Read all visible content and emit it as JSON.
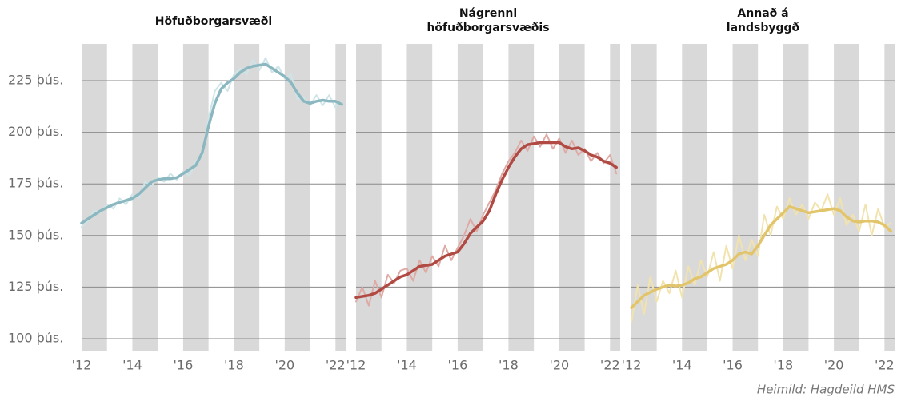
{
  "chart_data": [
    {
      "type": "line",
      "title": [
        "Höfuðborgarsvæði"
      ],
      "x": [
        2012,
        2012.25,
        2012.5,
        2012.75,
        2013,
        2013.25,
        2013.5,
        2013.75,
        2014,
        2014.25,
        2014.5,
        2014.75,
        2015,
        2015.25,
        2015.5,
        2015.75,
        2016,
        2016.25,
        2016.5,
        2016.75,
        2017,
        2017.25,
        2017.5,
        2017.75,
        2018,
        2018.25,
        2018.5,
        2018.75,
        2019,
        2019.25,
        2019.5,
        2019.75,
        2020,
        2020.25,
        2020.5,
        2020.75,
        2021,
        2021.25,
        2021.5,
        2021.75,
        2022,
        2022.25
      ],
      "series": [
        {
          "color": "#cfe4e6",
          "values": [
            154,
            157,
            162,
            161,
            165,
            163,
            168,
            165,
            170,
            168,
            176,
            174,
            178,
            176,
            180,
            177,
            181,
            179,
            186,
            188,
            207,
            220,
            224,
            220,
            228,
            231,
            228,
            235,
            230,
            236,
            229,
            232,
            226,
            228,
            216,
            217,
            213,
            218,
            213,
            218,
            212,
            215
          ]
        },
        {
          "color": "#8bb8c0",
          "values": [
            156,
            158,
            160,
            162,
            163.5,
            165,
            166,
            167,
            168,
            170,
            173,
            176,
            177,
            177.5,
            177.5,
            178,
            180,
            182,
            184,
            190,
            203,
            214,
            221,
            224,
            226,
            229,
            231,
            232,
            232.5,
            233,
            231,
            229,
            227,
            224,
            219,
            215,
            214,
            215,
            215.5,
            215,
            215,
            213.5
          ]
        }
      ],
      "xlim": [
        2012,
        2022.4
      ],
      "xticks": [
        {
          "value": 2012,
          "label": "'12"
        },
        {
          "value": 2014,
          "label": "'14"
        },
        {
          "value": 2016,
          "label": "'16"
        },
        {
          "value": 2018,
          "label": "'18"
        },
        {
          "value": 2020,
          "label": "'20"
        },
        {
          "value": 2022,
          "label": "'22"
        }
      ],
      "ylim": [
        93.8,
        242.8
      ],
      "yticks": [
        {
          "value": 100,
          "label": "100 þús."
        },
        {
          "value": 125,
          "label": "125 þús."
        },
        {
          "value": 150,
          "label": "150 þús."
        },
        {
          "value": 175,
          "label": "175 þús."
        },
        {
          "value": 200,
          "label": "200 þús."
        },
        {
          "value": 225,
          "label": "225 þús."
        }
      ],
      "grid": true
    },
    {
      "type": "line",
      "title": [
        "Nágrenni",
        "höfuðborgarsvæðis"
      ],
      "x": [
        2012,
        2012.25,
        2012.5,
        2012.75,
        2013,
        2013.25,
        2013.5,
        2013.75,
        2014,
        2014.25,
        2014.5,
        2014.75,
        2015,
        2015.25,
        2015.5,
        2015.75,
        2016,
        2016.25,
        2016.5,
        2016.75,
        2017,
        2017.25,
        2017.5,
        2017.75,
        2018,
        2018.25,
        2018.5,
        2018.75,
        2019,
        2019.25,
        2019.5,
        2019.75,
        2020,
        2020.25,
        2020.5,
        2020.75,
        2021,
        2021.25,
        2021.5,
        2021.75,
        2022,
        2022.25
      ],
      "series": [
        {
          "color": "#deaaa5",
          "values": [
            118,
            125,
            116,
            128,
            120,
            131,
            127,
            133,
            134,
            128,
            138,
            132,
            140,
            135,
            145,
            138,
            144,
            150,
            158,
            152,
            160,
            166,
            172,
            180,
            186,
            190,
            196,
            191,
            198,
            193,
            199,
            192,
            197,
            190,
            196,
            189,
            192,
            186,
            190,
            185,
            189,
            180
          ]
        },
        {
          "color": "#b04a43",
          "values": [
            120,
            120.5,
            121,
            122,
            124,
            126,
            128,
            130,
            131,
            133,
            135,
            135.5,
            136,
            138,
            140,
            141,
            142,
            146,
            151,
            154,
            157,
            162,
            170,
            177,
            183,
            188,
            192,
            194,
            194.5,
            195,
            195,
            195,
            195,
            193,
            192,
            192.5,
            191,
            189,
            188,
            186,
            185,
            183
          ]
        }
      ],
      "xlim": [
        2012,
        2022.4
      ],
      "xticks": [
        {
          "value": 2012,
          "label": "'12"
        },
        {
          "value": 2014,
          "label": "'14"
        },
        {
          "value": 2016,
          "label": "'16"
        },
        {
          "value": 2018,
          "label": "'18"
        },
        {
          "value": 2020,
          "label": "'20"
        },
        {
          "value": 2022,
          "label": "'22"
        }
      ],
      "ylim": [
        93.8,
        242.8
      ],
      "yticks": [
        100,
        125,
        150,
        175,
        200,
        225
      ],
      "grid": true
    },
    {
      "type": "line",
      "title": [
        "Annað á",
        "landsbyggð"
      ],
      "x": [
        2012,
        2012.25,
        2012.5,
        2012.75,
        2013,
        2013.25,
        2013.5,
        2013.75,
        2014,
        2014.25,
        2014.5,
        2014.75,
        2015,
        2015.25,
        2015.5,
        2015.75,
        2016,
        2016.25,
        2016.5,
        2016.75,
        2017,
        2017.25,
        2017.5,
        2017.75,
        2018,
        2018.25,
        2018.5,
        2018.75,
        2019,
        2019.25,
        2019.5,
        2019.75,
        2020,
        2020.25,
        2020.5,
        2020.75,
        2021,
        2021.25,
        2021.5,
        2021.75,
        2022,
        2022.25
      ],
      "series": [
        {
          "color": "#f2e3ae",
          "values": [
            108,
            126,
            112,
            130,
            118,
            128,
            122,
            133,
            120,
            135,
            126,
            138,
            130,
            142,
            128,
            145,
            134,
            150,
            138,
            148,
            140,
            160,
            150,
            164,
            158,
            168,
            160,
            165,
            158,
            166,
            162,
            170,
            160,
            168,
            155,
            160,
            152,
            165,
            150,
            163,
            154,
            156
          ]
        },
        {
          "color": "#e2c56b",
          "values": [
            115,
            118,
            121,
            122.5,
            124,
            125,
            126,
            125.5,
            126,
            127,
            129,
            130,
            132,
            134,
            135,
            136,
            138,
            141,
            142,
            141,
            145,
            150,
            155,
            158,
            161,
            164,
            163,
            162,
            161,
            161.5,
            162,
            162.5,
            163,
            162,
            159,
            157,
            156.5,
            157,
            157,
            156.5,
            155,
            152
          ]
        }
      ],
      "xlim": [
        2012,
        2022.4
      ],
      "xticks": [
        {
          "value": 2012,
          "label": "'12"
        },
        {
          "value": 2014,
          "label": "'14"
        },
        {
          "value": 2016,
          "label": "'16"
        },
        {
          "value": 2018,
          "label": "'18"
        },
        {
          "value": 2020,
          "label": "'20"
        },
        {
          "value": 2022,
          "label": "'22"
        }
      ],
      "ylim": [
        93.8,
        242.8
      ],
      "yticks": [
        100,
        125,
        150,
        175,
        200,
        225
      ],
      "grid": true
    }
  ],
  "source": "Heimild: Hagdeild HMS"
}
